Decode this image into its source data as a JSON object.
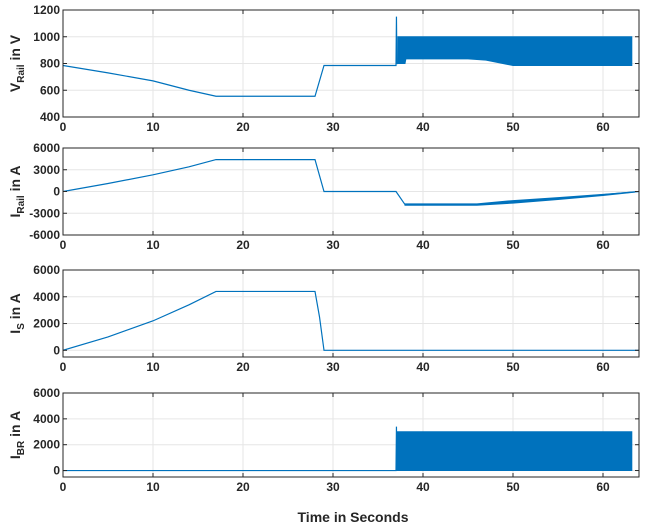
{
  "line_color": "#0072BD",
  "band_color": "#0072BD",
  "chart_data": [
    {
      "type": "line",
      "ylabel": {
        "main": "V",
        "sub": "Rail",
        "unit": " in V"
      },
      "xlim": [
        0,
        64
      ],
      "ylim": [
        400,
        1200
      ],
      "xticks": [
        0,
        10,
        20,
        30,
        40,
        50,
        60
      ],
      "xtick_labels": [
        "0",
        "10",
        "20",
        "30",
        "40",
        "50",
        "60"
      ],
      "yticks": [
        400,
        600,
        800,
        1000,
        1200
      ],
      "ytick_labels": [
        "400",
        "600",
        "800",
        "1000",
        "1200"
      ],
      "grid": true,
      "series": [
        {
          "x": [
            0,
            5,
            10,
            14,
            17,
            20,
            25,
            28,
            29,
            30,
            37,
            37.05,
            37.1,
            37.2
          ],
          "y": [
            785,
            730,
            670,
            600,
            555,
            555,
            555,
            555,
            785,
            785,
            785,
            1150,
            800,
            800
          ]
        }
      ],
      "bands": [
        {
          "x": [
            37.2,
            38,
            38.1,
            45,
            47,
            50,
            63.2
          ],
          "upper": [
            1000,
            1000,
            1000,
            1000,
            1000,
            1000,
            1000
          ],
          "lower": [
            800,
            800,
            835,
            835,
            825,
            785,
            785
          ]
        }
      ]
    },
    {
      "type": "line",
      "ylabel": {
        "main": "I",
        "sub": "Rail",
        "unit": " in A"
      },
      "xlim": [
        0,
        64
      ],
      "ylim": [
        -6000,
        6000
      ],
      "xticks": [
        0,
        10,
        20,
        30,
        40,
        50,
        60
      ],
      "xtick_labels": [
        "0",
        "10",
        "20",
        "30",
        "40",
        "50",
        "60"
      ],
      "yticks": [
        -6000,
        -3000,
        0,
        3000,
        6000
      ],
      "ytick_labels": [
        "-6000",
        "-3000",
        "0",
        "3000",
        "6000"
      ],
      "grid": true,
      "series": [
        {
          "x": [
            0,
            5,
            10,
            14,
            17,
            20,
            25,
            28,
            29,
            30,
            37,
            38,
            46,
            50,
            55,
            60,
            64
          ],
          "y": [
            0,
            1100,
            2300,
            3400,
            4400,
            4400,
            4400,
            4400,
            0,
            0,
            0,
            -1800,
            -1800,
            -1400,
            -950,
            -450,
            0
          ]
        }
      ],
      "bands": [
        {
          "x": [
            38,
            46,
            50,
            55,
            60,
            63.5
          ],
          "upper": [
            -1700,
            -1700,
            -1250,
            -850,
            -400,
            -50
          ],
          "lower": [
            -1900,
            -1900,
            -1600,
            -1100,
            -550,
            -100
          ]
        }
      ]
    },
    {
      "type": "line",
      "ylabel": {
        "main": "I",
        "sub": "S",
        "unit": " in A"
      },
      "xlim": [
        0,
        64
      ],
      "ylim": [
        -500,
        6000
      ],
      "xticks": [
        0,
        10,
        20,
        30,
        40,
        50,
        60
      ],
      "xtick_labels": [
        "0",
        "10",
        "20",
        "30",
        "40",
        "50",
        "60"
      ],
      "yticks": [
        0,
        2000,
        4000,
        6000
      ],
      "ytick_labels": [
        "0",
        "2000",
        "4000",
        "6000"
      ],
      "grid": true,
      "series": [
        {
          "x": [
            0,
            5,
            10,
            14,
            17,
            20,
            25,
            28,
            28.5,
            29,
            35,
            40,
            50,
            60,
            64
          ],
          "y": [
            0,
            1000,
            2200,
            3400,
            4400,
            4400,
            4400,
            4400,
            2500,
            0,
            0,
            0,
            0,
            0,
            0
          ]
        }
      ],
      "bands": []
    },
    {
      "type": "line",
      "ylabel": {
        "main": "I",
        "sub": "BR",
        "unit": " in A"
      },
      "xlim": [
        0,
        64
      ],
      "ylim": [
        -500,
        6000
      ],
      "xticks": [
        0,
        10,
        20,
        30,
        40,
        50,
        60
      ],
      "xtick_labels": [
        "0",
        "10",
        "20",
        "30",
        "40",
        "50",
        "60"
      ],
      "yticks": [
        0,
        2000,
        4000,
        6000
      ],
      "ytick_labels": [
        "0",
        "2000",
        "4000",
        "6000"
      ],
      "grid": true,
      "series": [
        {
          "x": [
            0,
            37,
            37.05,
            37.1
          ],
          "y": [
            0,
            0,
            3400,
            0
          ]
        }
      ],
      "bands": [
        {
          "x": [
            37.1,
            63.2
          ],
          "upper": [
            3000,
            3000
          ],
          "lower": [
            0,
            0
          ]
        }
      ]
    }
  ],
  "xlabel": "Time in Seconds"
}
